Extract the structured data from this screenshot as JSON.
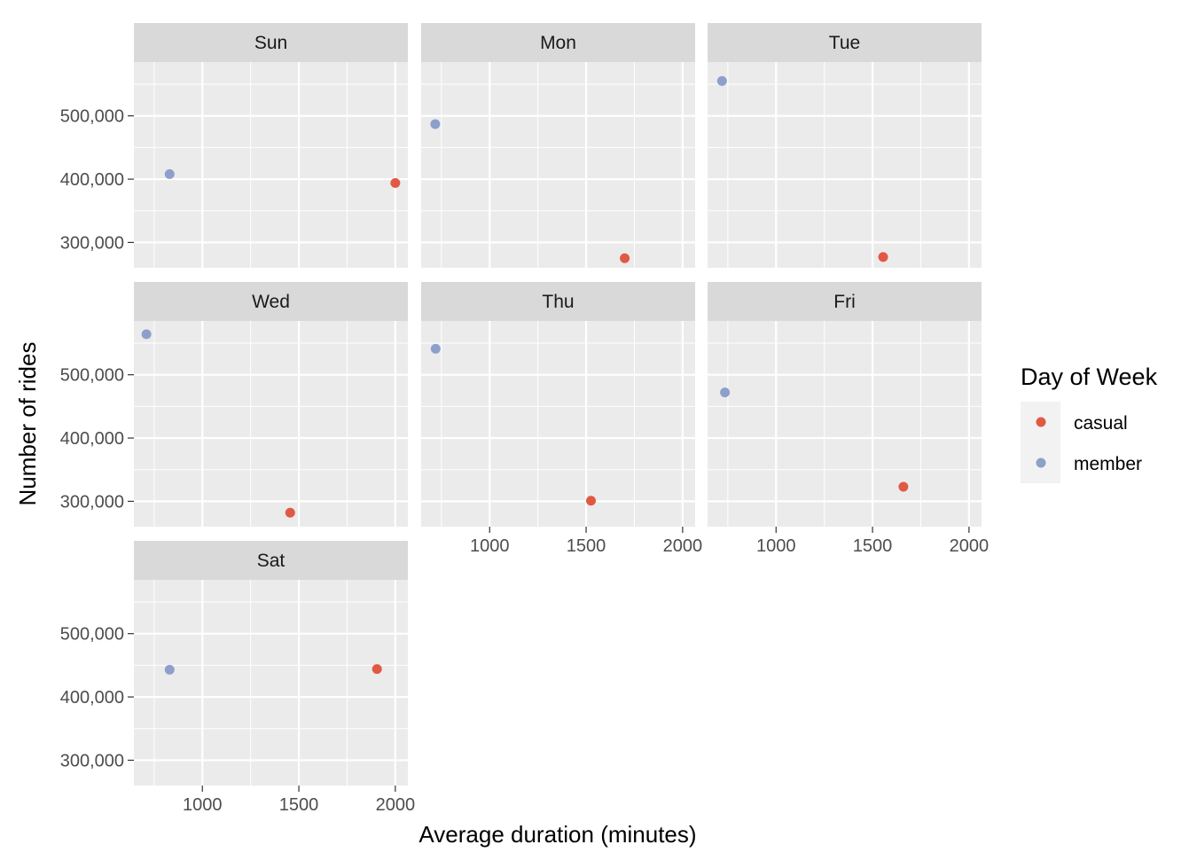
{
  "chart_data": {
    "type": "scatter",
    "facet_by": "day",
    "xlabel": "Average duration (minutes)",
    "ylabel": "Number of rides",
    "xlim": [
      645,
      2065
    ],
    "ylim": [
      260000,
      585000
    ],
    "x_ticks": [
      1000,
      1500,
      2000
    ],
    "x_minor": [
      750,
      1250,
      1750
    ],
    "y_ticks": [
      300000,
      400000,
      500000
    ],
    "y_tick_labels": [
      "300,000",
      "400,000",
      "500,000"
    ],
    "y_minor": [
      350000,
      450000,
      550000
    ],
    "grid": true,
    "legend": {
      "title": "Day of Week",
      "position": "right",
      "entries": [
        {
          "key": "casual",
          "label": "casual",
          "color": "#E05A43"
        },
        {
          "key": "member",
          "label": "member",
          "color": "#8DA0CB"
        }
      ]
    },
    "facets": [
      {
        "label": "Sun",
        "points": [
          {
            "group": "member",
            "x": 830,
            "y": 408000
          },
          {
            "group": "casual",
            "x": 2000,
            "y": 394000
          }
        ]
      },
      {
        "label": "Mon",
        "points": [
          {
            "group": "member",
            "x": 718,
            "y": 487000
          },
          {
            "group": "casual",
            "x": 1700,
            "y": 275000
          }
        ]
      },
      {
        "label": "Tue",
        "points": [
          {
            "group": "member",
            "x": 720,
            "y": 555000
          },
          {
            "group": "casual",
            "x": 1555,
            "y": 277000
          }
        ]
      },
      {
        "label": "Wed",
        "points": [
          {
            "group": "member",
            "x": 710,
            "y": 564000
          },
          {
            "group": "casual",
            "x": 1455,
            "y": 282000
          }
        ]
      },
      {
        "label": "Thu",
        "points": [
          {
            "group": "member",
            "x": 720,
            "y": 541000
          },
          {
            "group": "casual",
            "x": 1525,
            "y": 301000
          }
        ]
      },
      {
        "label": "Fri",
        "points": [
          {
            "group": "member",
            "x": 735,
            "y": 472000
          },
          {
            "group": "casual",
            "x": 1660,
            "y": 323000
          }
        ]
      },
      {
        "label": "Sat",
        "points": [
          {
            "group": "member",
            "x": 830,
            "y": 443000
          },
          {
            "group": "casual",
            "x": 1905,
            "y": 444000
          }
        ]
      }
    ]
  }
}
